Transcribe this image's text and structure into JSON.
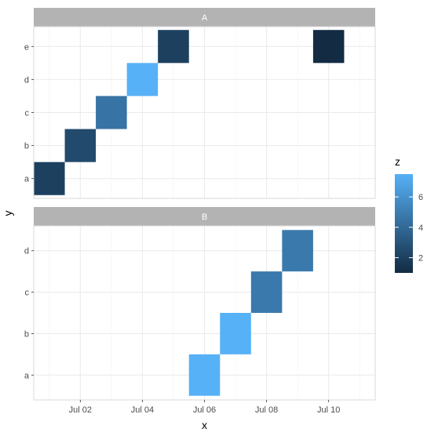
{
  "chart_data": {
    "type": "heatmap",
    "xlabel": "x",
    "ylabel": "y",
    "x_ticks": [
      "Jul 02",
      "Jul 04",
      "Jul 06",
      "Jul 08",
      "Jul 10"
    ],
    "x_range": [
      "2023-06-30T12:00",
      "2023-07-11T12:00"
    ],
    "legend": {
      "title": "z",
      "ticks": [
        2,
        4,
        6
      ],
      "range": [
        1,
        7.5
      ],
      "color_low": "#132B43",
      "color_high": "#56B1F7",
      "placement": "right"
    },
    "panels": [
      {
        "strip": "A",
        "categories": [
          "a",
          "b",
          "c",
          "d",
          "e"
        ],
        "tiles": [
          {
            "x": "2023-07-01",
            "y": "a",
            "z": 2
          },
          {
            "x": "2023-07-02",
            "y": "b",
            "z": 2.5
          },
          {
            "x": "2023-07-03",
            "y": "c",
            "z": 4.5
          },
          {
            "x": "2023-07-04",
            "y": "d",
            "z": 7.5
          },
          {
            "x": "2023-07-05",
            "y": "e",
            "z": 2
          },
          {
            "x": "2023-07-10",
            "y": "e",
            "z": 1
          }
        ]
      },
      {
        "strip": "B",
        "categories": [
          "a",
          "b",
          "c",
          "d"
        ],
        "tiles": [
          {
            "x": "2023-07-06",
            "y": "a",
            "z": 7.5
          },
          {
            "x": "2023-07-07",
            "y": "b",
            "z": 7.5
          },
          {
            "x": "2023-07-08",
            "y": "c",
            "z": 4.8
          },
          {
            "x": "2023-07-09",
            "y": "d",
            "z": 4.8
          }
        ]
      }
    ]
  }
}
